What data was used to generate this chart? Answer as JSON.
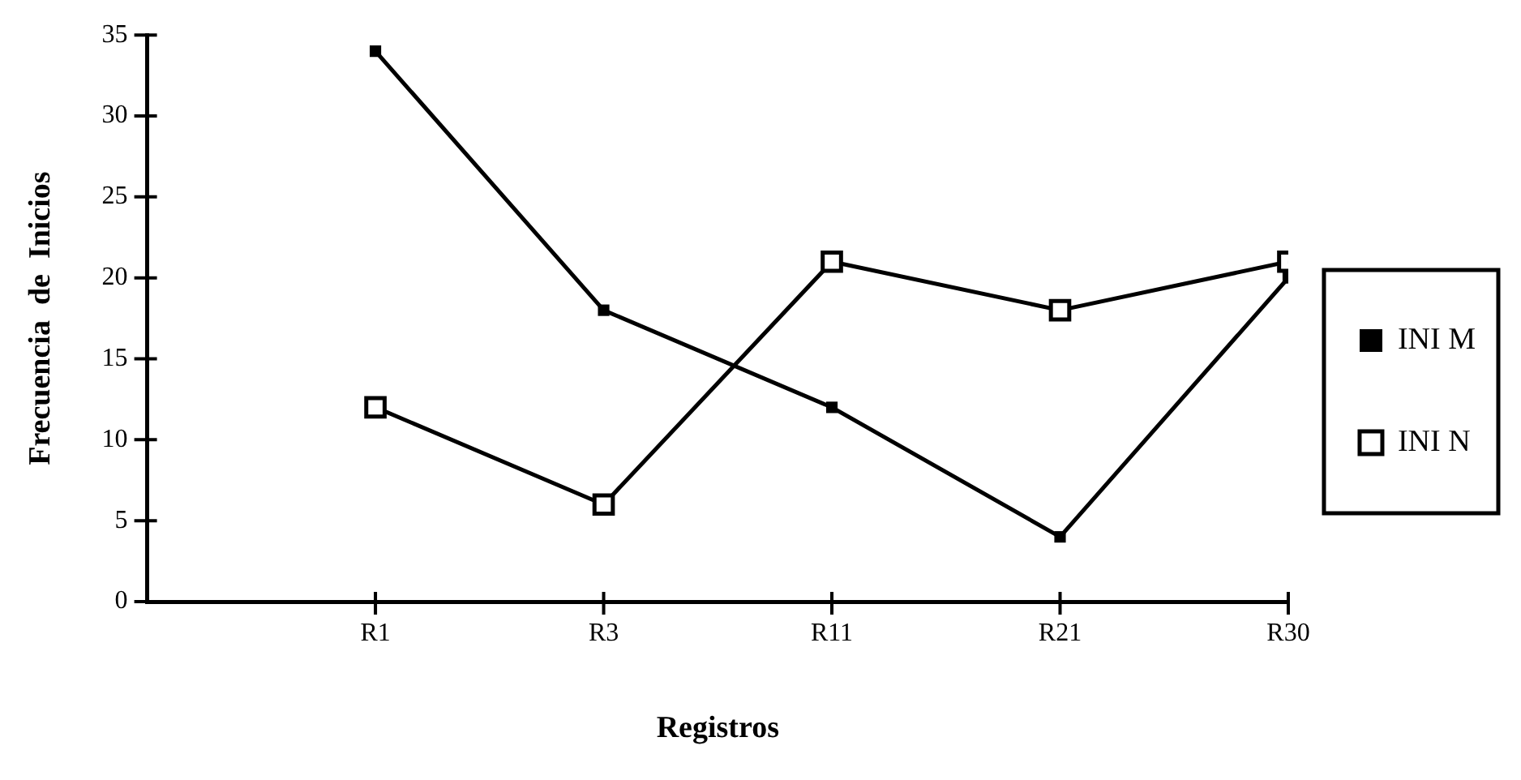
{
  "chart_data": {
    "type": "line",
    "xlabel": "Registros",
    "ylabel": "Frecuencia  de  Inicios",
    "categories": [
      "R1",
      "R3",
      "R11",
      "R21",
      "R30"
    ],
    "series": [
      {
        "name": "INI M",
        "color": "#000000",
        "values": [
          34,
          18,
          12,
          4,
          20
        ]
      },
      {
        "name": "INI N",
        "color": "#000000",
        "values": [
          12,
          6,
          21,
          18,
          21
        ]
      }
    ],
    "ylim": [
      0,
      35
    ],
    "yticks": [
      0,
      5,
      10,
      15,
      20,
      25,
      30,
      35
    ],
    "grid": false,
    "legend": "right",
    "marker": "square",
    "line_style": "solid"
  }
}
